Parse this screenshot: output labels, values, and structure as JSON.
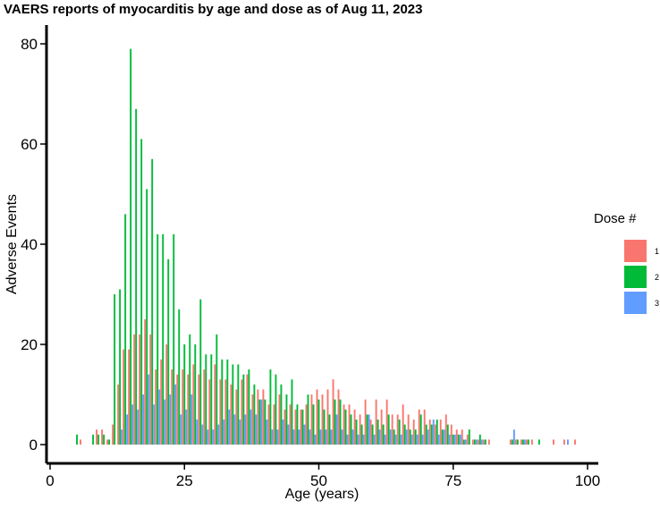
{
  "chart_data": {
    "type": "bar",
    "title": "VAERS reports of myocarditis by age and dose as of Aug 11, 2023",
    "xlabel": "Age (years)",
    "ylabel": "Adverse Events",
    "xlim": [
      0,
      100
    ],
    "ylim": [
      0,
      85
    ],
    "xticks": [
      "0",
      "25",
      "50",
      "75",
      "100"
    ],
    "yticks": [
      "0",
      "20",
      "40",
      "60",
      "80"
    ],
    "grid": false,
    "legend_position": "right",
    "legend_title": "Dose #",
    "series": [
      {
        "name": "1",
        "color": "#F8766D",
        "points": [
          [
            6,
            1
          ],
          [
            9,
            3
          ],
          [
            10,
            3
          ],
          [
            11,
            1
          ],
          [
            12,
            4
          ],
          [
            13,
            12
          ],
          [
            14,
            19
          ],
          [
            15,
            19
          ],
          [
            16,
            22
          ],
          [
            17,
            22
          ],
          [
            18,
            25
          ],
          [
            19,
            22
          ],
          [
            20,
            15
          ],
          [
            21,
            17
          ],
          [
            22,
            20
          ],
          [
            23,
            15
          ],
          [
            24,
            14
          ],
          [
            25,
            15
          ],
          [
            26,
            14
          ],
          [
            27,
            16
          ],
          [
            28,
            14
          ],
          [
            29,
            15
          ],
          [
            30,
            13
          ],
          [
            31,
            16
          ],
          [
            32,
            13
          ],
          [
            33,
            13
          ],
          [
            34,
            12
          ],
          [
            35,
            11
          ],
          [
            36,
            13
          ],
          [
            37,
            14
          ],
          [
            38,
            10
          ],
          [
            39,
            11
          ],
          [
            40,
            11
          ],
          [
            41,
            8
          ],
          [
            42,
            8
          ],
          [
            43,
            10
          ],
          [
            44,
            7
          ],
          [
            45,
            8
          ],
          [
            46,
            7
          ],
          [
            47,
            7
          ],
          [
            48,
            8
          ],
          [
            49,
            10
          ],
          [
            50,
            11
          ],
          [
            51,
            10
          ],
          [
            52,
            11
          ],
          [
            53,
            13
          ],
          [
            54,
            11
          ],
          [
            55,
            8
          ],
          [
            56,
            8
          ],
          [
            57,
            7
          ],
          [
            58,
            6
          ],
          [
            59,
            9
          ],
          [
            60,
            5
          ],
          [
            61,
            9
          ],
          [
            62,
            7
          ],
          [
            63,
            9
          ],
          [
            64,
            6
          ],
          [
            65,
            6
          ],
          [
            66,
            8
          ],
          [
            67,
            6
          ],
          [
            68,
            5
          ],
          [
            69,
            7
          ],
          [
            70,
            7
          ],
          [
            71,
            5
          ],
          [
            72,
            4
          ],
          [
            73,
            5
          ],
          [
            74,
            6
          ],
          [
            75,
            4
          ],
          [
            76,
            3
          ],
          [
            77,
            3
          ],
          [
            78,
            2
          ],
          [
            79,
            1
          ],
          [
            80,
            1
          ],
          [
            81,
            1
          ],
          [
            82,
            1
          ],
          [
            86,
            1
          ],
          [
            87,
            1
          ],
          [
            88,
            1
          ],
          [
            89,
            1
          ],
          [
            90,
            1
          ],
          [
            94,
            1
          ],
          [
            96,
            1
          ],
          [
            98,
            1
          ]
        ]
      },
      {
        "name": "2",
        "color": "#00BA38",
        "points": [
          [
            5,
            2
          ],
          [
            8,
            2
          ],
          [
            9,
            2
          ],
          [
            10,
            2
          ],
          [
            11,
            1
          ],
          [
            12,
            30
          ],
          [
            13,
            31
          ],
          [
            14,
            46
          ],
          [
            15,
            79
          ],
          [
            16,
            67
          ],
          [
            17,
            61
          ],
          [
            18,
            51
          ],
          [
            19,
            57
          ],
          [
            20,
            42
          ],
          [
            21,
            42
          ],
          [
            22,
            37
          ],
          [
            23,
            42
          ],
          [
            24,
            27
          ],
          [
            25,
            20
          ],
          [
            26,
            22
          ],
          [
            27,
            20
          ],
          [
            28,
            29
          ],
          [
            29,
            18
          ],
          [
            30,
            18
          ],
          [
            31,
            22
          ],
          [
            32,
            17
          ],
          [
            33,
            17
          ],
          [
            34,
            16
          ],
          [
            35,
            16
          ],
          [
            36,
            14
          ],
          [
            37,
            15
          ],
          [
            38,
            12
          ],
          [
            39,
            9
          ],
          [
            40,
            9
          ],
          [
            41,
            15
          ],
          [
            42,
            14
          ],
          [
            43,
            12
          ],
          [
            44,
            10
          ],
          [
            45,
            13
          ],
          [
            46,
            8
          ],
          [
            47,
            7
          ],
          [
            48,
            10
          ],
          [
            49,
            8
          ],
          [
            50,
            9
          ],
          [
            51,
            7
          ],
          [
            52,
            6
          ],
          [
            53,
            9
          ],
          [
            54,
            9
          ],
          [
            55,
            7
          ],
          [
            56,
            6
          ],
          [
            57,
            5
          ],
          [
            58,
            4
          ],
          [
            59,
            6
          ],
          [
            60,
            4
          ],
          [
            61,
            5
          ],
          [
            62,
            4
          ],
          [
            63,
            6
          ],
          [
            64,
            3
          ],
          [
            65,
            5
          ],
          [
            66,
            4
          ],
          [
            67,
            3
          ],
          [
            68,
            3
          ],
          [
            69,
            6
          ],
          [
            70,
            4
          ],
          [
            71,
            4
          ],
          [
            72,
            5
          ],
          [
            73,
            3
          ],
          [
            74,
            4
          ],
          [
            75,
            2
          ],
          [
            76,
            2
          ],
          [
            77,
            1
          ],
          [
            78,
            3
          ],
          [
            79,
            1
          ],
          [
            80,
            2
          ],
          [
            81,
            1
          ],
          [
            86,
            1
          ],
          [
            87,
            1
          ],
          [
            88,
            1
          ],
          [
            89,
            1
          ],
          [
            91,
            1
          ]
        ]
      },
      {
        "name": "3",
        "color": "#619CFF",
        "points": [
          [
            13,
            3
          ],
          [
            14,
            6
          ],
          [
            15,
            8
          ],
          [
            16,
            7
          ],
          [
            17,
            10
          ],
          [
            18,
            14
          ],
          [
            19,
            8
          ],
          [
            20,
            11
          ],
          [
            21,
            9
          ],
          [
            22,
            10
          ],
          [
            23,
            12
          ],
          [
            24,
            6
          ],
          [
            25,
            7
          ],
          [
            26,
            10
          ],
          [
            27,
            5
          ],
          [
            28,
            4
          ],
          [
            29,
            3
          ],
          [
            30,
            3
          ],
          [
            31,
            4
          ],
          [
            32,
            5
          ],
          [
            33,
            7
          ],
          [
            34,
            6
          ],
          [
            35,
            5
          ],
          [
            36,
            6
          ],
          [
            37,
            7
          ],
          [
            38,
            6
          ],
          [
            39,
            9
          ],
          [
            40,
            5
          ],
          [
            41,
            3
          ],
          [
            42,
            3
          ],
          [
            43,
            5
          ],
          [
            44,
            4
          ],
          [
            45,
            3
          ],
          [
            46,
            3
          ],
          [
            47,
            4
          ],
          [
            48,
            3
          ],
          [
            49,
            2
          ],
          [
            50,
            3
          ],
          [
            51,
            3
          ],
          [
            52,
            3
          ],
          [
            53,
            6
          ],
          [
            54,
            3
          ],
          [
            55,
            2
          ],
          [
            56,
            3
          ],
          [
            57,
            2
          ],
          [
            58,
            2
          ],
          [
            59,
            6
          ],
          [
            60,
            2
          ],
          [
            61,
            3
          ],
          [
            62,
            2
          ],
          [
            63,
            3
          ],
          [
            64,
            2
          ],
          [
            65,
            2
          ],
          [
            66,
            3
          ],
          [
            67,
            2
          ],
          [
            68,
            2
          ],
          [
            69,
            2
          ],
          [
            70,
            3
          ],
          [
            71,
            5
          ],
          [
            72,
            2
          ],
          [
            73,
            3
          ],
          [
            74,
            2
          ],
          [
            75,
            2
          ],
          [
            76,
            2
          ],
          [
            77,
            1
          ],
          [
            79,
            1
          ],
          [
            80,
            1
          ],
          [
            86,
            3
          ],
          [
            88,
            1
          ],
          [
            96,
            1
          ]
        ]
      }
    ]
  }
}
